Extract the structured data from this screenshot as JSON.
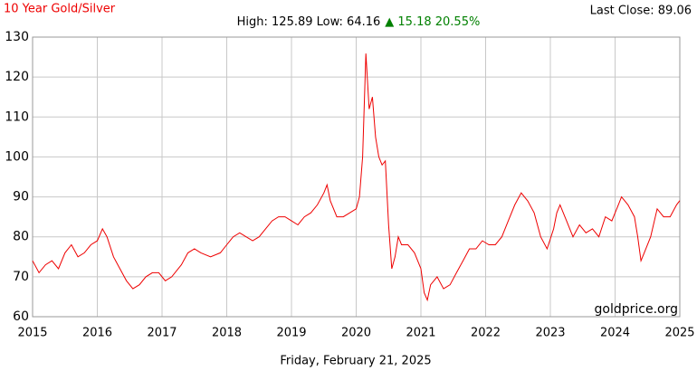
{
  "chart_data": {
    "type": "line",
    "title": "10 Year Gold/Silver",
    "last_close": "Last Close: 89.06",
    "high_low": "High: 125.89 Low: 64.16",
    "change": "▲ 15.18 20.55%",
    "watermark": "goldprice.org",
    "x_label": "Friday, February 21, 2025",
    "x": [
      2015.0,
      2015.1,
      2015.2,
      2015.3,
      2015.4,
      2015.5,
      2015.6,
      2015.7,
      2015.8,
      2015.9,
      2016.0,
      2016.08,
      2016.15,
      2016.25,
      2016.35,
      2016.45,
      2016.55,
      2016.65,
      2016.75,
      2016.85,
      2016.95,
      2017.05,
      2017.15,
      2017.3,
      2017.4,
      2017.5,
      2017.6,
      2017.75,
      2017.9,
      2018.0,
      2018.1,
      2018.2,
      2018.3,
      2018.4,
      2018.5,
      2018.6,
      2018.7,
      2018.8,
      2018.9,
      2019.0,
      2019.1,
      2019.2,
      2019.3,
      2019.4,
      2019.5,
      2019.55,
      2019.6,
      2019.7,
      2019.8,
      2019.9,
      2020.0,
      2020.05,
      2020.1,
      2020.15,
      2020.2,
      2020.25,
      2020.3,
      2020.35,
      2020.4,
      2020.45,
      2020.5,
      2020.55,
      2020.6,
      2020.65,
      2020.7,
      2020.8,
      2020.9,
      2021.0,
      2021.05,
      2021.1,
      2021.15,
      2021.25,
      2021.35,
      2021.45,
      2021.55,
      2021.65,
      2021.75,
      2021.85,
      2021.95,
      2022.05,
      2022.15,
      2022.25,
      2022.35,
      2022.45,
      2022.55,
      2022.65,
      2022.75,
      2022.85,
      2022.95,
      2023.05,
      2023.1,
      2023.15,
      2023.25,
      2023.35,
      2023.45,
      2023.55,
      2023.65,
      2023.75,
      2023.85,
      2023.95,
      2024.05,
      2024.1,
      2024.2,
      2024.3,
      2024.35,
      2024.4,
      2024.45,
      2024.55,
      2024.65,
      2024.75,
      2024.85,
      2024.95,
      2025.0
    ],
    "series": [
      {
        "name": "Gold/Silver",
        "color": "#ee0000",
        "values": [
          74,
          71,
          73,
          74,
          72,
          76,
          78,
          75,
          76,
          78,
          79,
          82,
          80,
          75,
          72,
          69,
          67,
          68,
          70,
          71,
          71,
          69,
          70,
          73,
          76,
          77,
          76,
          75,
          76,
          78,
          80,
          81,
          80,
          79,
          80,
          82,
          84,
          85,
          85,
          84,
          83,
          85,
          86,
          88,
          91,
          93,
          89,
          85,
          85,
          86,
          87,
          90,
          100,
          125.89,
          112,
          115,
          105,
          100,
          98,
          99,
          83,
          72,
          75,
          80,
          78,
          78,
          76,
          72,
          66,
          64.16,
          68,
          70,
          67,
          68,
          71,
          74,
          77,
          77,
          79,
          78,
          78,
          80,
          84,
          88,
          91,
          89,
          86,
          80,
          77,
          82,
          86,
          88,
          84,
          80,
          83,
          81,
          82,
          80,
          85,
          84,
          88,
          90,
          88,
          85,
          80,
          74,
          76,
          80,
          87,
          85,
          85,
          88,
          89.06
        ]
      }
    ],
    "xlim": [
      2015,
      2025
    ],
    "xticks": [
      2015,
      2016,
      2017,
      2018,
      2019,
      2020,
      2021,
      2022,
      2023,
      2024,
      2025
    ],
    "ylim": [
      60,
      130
    ],
    "yticks": [
      60,
      70,
      80,
      90,
      100,
      110,
      120,
      130
    ],
    "grid": true
  }
}
